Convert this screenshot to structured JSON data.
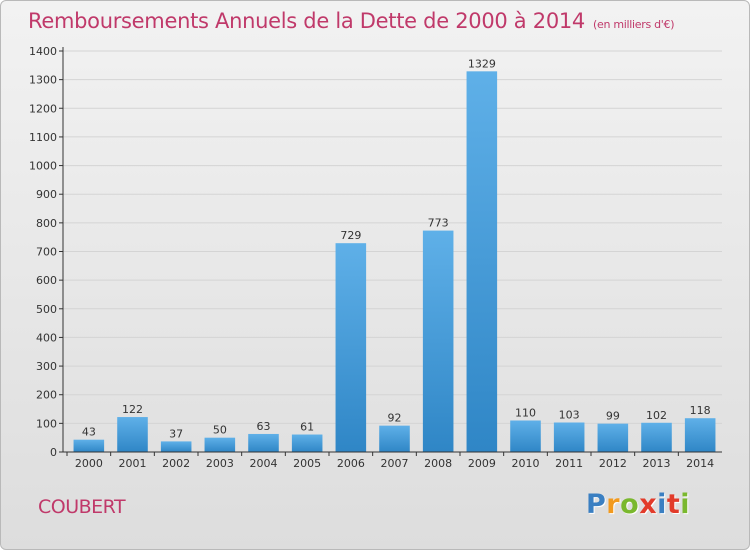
{
  "header": {
    "title": "Remboursements Annuels de la Dette de 2000 à 2014",
    "unit": "(en milliers d'€)"
  },
  "footer": {
    "commune": "COUBERT",
    "logo": "Proxiti"
  },
  "colors": {
    "title": "#c0396a",
    "bar_top": "#5fb0e8",
    "bar_bottom": "#2f86c6",
    "grid": "#d4d4d4",
    "axis": "#333333"
  },
  "chart_data": {
    "type": "bar",
    "title": "Remboursements Annuels de la Dette de 2000 à 2014",
    "xlabel": "",
    "ylabel": "",
    "categories": [
      "2000",
      "2001",
      "2002",
      "2003",
      "2004",
      "2005",
      "2006",
      "2007",
      "2008",
      "2009",
      "2010",
      "2011",
      "2012",
      "2013",
      "2014"
    ],
    "values": [
      43,
      122,
      37,
      50,
      63,
      61,
      729,
      92,
      773,
      1329,
      110,
      103,
      99,
      102,
      118
    ],
    "ylim": [
      0,
      1400
    ],
    "yticks": [
      0,
      100,
      200,
      300,
      400,
      500,
      600,
      700,
      800,
      900,
      1000,
      1100,
      1200,
      1300,
      1400
    ],
    "grid": true,
    "data_labels": true
  }
}
